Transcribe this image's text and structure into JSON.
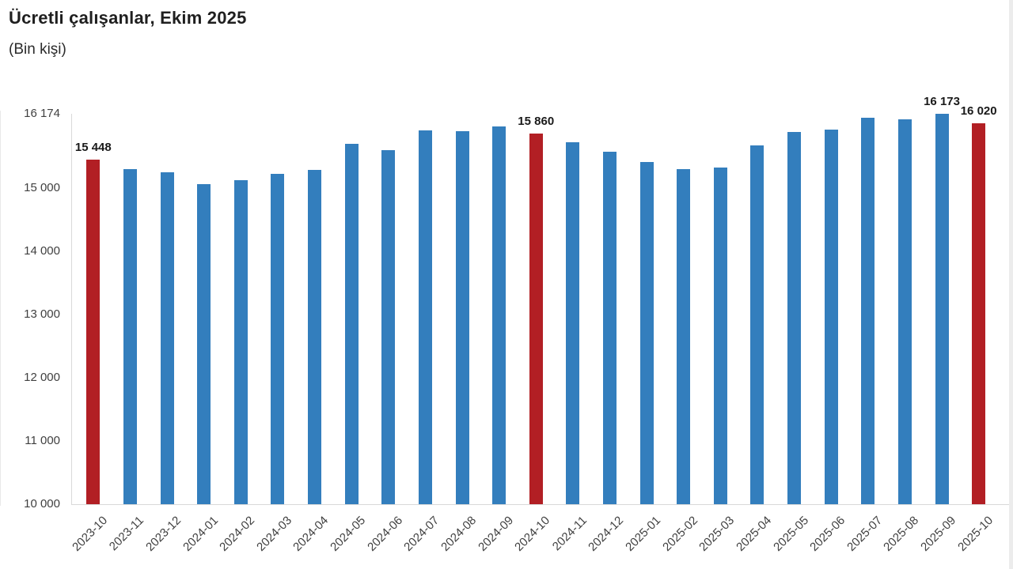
{
  "header": {
    "title": "Ücretli çalışanlar, Ekim 2025",
    "subtitle": "(Bin kişi)"
  },
  "chart_data": {
    "type": "bar",
    "title": "Ücretli çalışanlar, Ekim 2025",
    "subtitle": "(Bin kişi)",
    "unit": "Bin kişi",
    "categories": [
      "2023-10",
      "2023-11",
      "2023-12",
      "2024-01",
      "2024-02",
      "2024-03",
      "2024-04",
      "2024-05",
      "2024-06",
      "2024-07",
      "2024-08",
      "2024-09",
      "2024-10",
      "2024-11",
      "2024-12",
      "2025-01",
      "2025-02",
      "2025-03",
      "2025-04",
      "2025-05",
      "2025-06",
      "2025-07",
      "2025-08",
      "2025-09",
      "2025-10"
    ],
    "values": [
      15448,
      15305,
      15245,
      15065,
      15125,
      15220,
      15290,
      15695,
      15595,
      15910,
      15905,
      15980,
      15860,
      15730,
      15575,
      15410,
      15295,
      15325,
      15670,
      15890,
      15930,
      16115,
      16085,
      16173,
      16020
    ],
    "highlighted_categories": [
      "2023-10",
      "2024-10",
      "2025-10"
    ],
    "data_labels": {
      "2023-10": "15 448",
      "2024-10": "15 860",
      "2025-09": "16 173",
      "2025-10": "16 020"
    },
    "ylim": [
      10000,
      16174
    ],
    "yticks": [
      {
        "value": 10000,
        "label": "10 000"
      },
      {
        "value": 11000,
        "label": "11 000"
      },
      {
        "value": 12000,
        "label": "12 000"
      },
      {
        "value": 13000,
        "label": "13 000"
      },
      {
        "value": 14000,
        "label": "14 000"
      },
      {
        "value": 15000,
        "label": "15 000"
      },
      {
        "value": 16174,
        "label": "16 174"
      }
    ],
    "grid": false,
    "legend": false,
    "colors": {
      "bar": "#337EBD",
      "highlight": "#B21F24",
      "axis": "#D9D9D9",
      "tick_text": "#404040",
      "data_label_text": "#1A1A1A"
    }
  }
}
